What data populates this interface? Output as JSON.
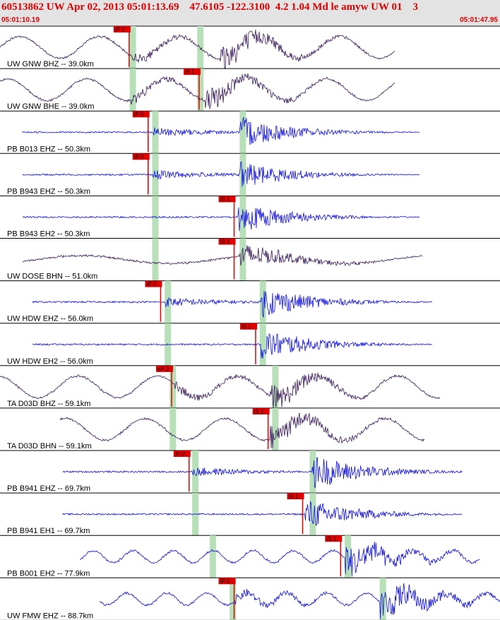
{
  "header": {
    "title": "60513862 UW Apr 02, 2013 05:01:13.69    47.6105 -122.3100  4.2 1.04 Md le amyw UW 01    3",
    "start_time": "05:01:10.19",
    "end_time": "05:01:47.95"
  },
  "colors": {
    "broadband": "#3a1a5a",
    "short_period": "#1010e0",
    "pick": "#e00000",
    "window": "#b8e0b8"
  },
  "chart_data": {
    "type": "line",
    "title": "60513862 UW Apr 02, 2013 05:01:13.69    47.6105 -122.3100  4.2 1.04 Md le amyw UW 01    3",
    "x_range": [
      "05:01:10.19",
      "05:01:47.95"
    ],
    "channels": [
      {
        "label": "UW GNW BHZ -- 39.0km",
        "kind": "broadband",
        "style": "long",
        "start": 0.0,
        "end": 0.79,
        "onset": 0.26,
        "onset2": 0.44,
        "amp": 0.85,
        "windows": [
          0.265,
          0.4
        ],
        "picks": [
          {
            "t": 0.23,
            "text": "iP 1",
            "color": "#e00000"
          }
        ]
      },
      {
        "label": "UW GNW BHE -- 39.0km",
        "kind": "broadband",
        "style": "long",
        "start": 0.0,
        "end": 0.79,
        "onset": 0.26,
        "onset2": 0.41,
        "amp": 0.7,
        "windows": [
          0.265,
          0.4
        ],
        "picks": [
          {
            "t": 0.37,
            "text": "iS 1",
            "color": "#e00000"
          }
        ]
      },
      {
        "label": "PB B013 EHZ -- 50.3km",
        "kind": "short",
        "style": "flat",
        "start": 0.045,
        "end": 0.84,
        "onset": 0.305,
        "onset2": 0.48,
        "amp": 0.85,
        "windows": [
          0.31,
          0.485
        ],
        "picks": [
          {
            "t": 0.268,
            "text": "iP 0",
            "color": "#e00000"
          }
        ]
      },
      {
        "label": "PB B943 EHZ -- 50.3km",
        "kind": "short",
        "style": "flat",
        "start": 0.045,
        "end": 0.84,
        "onset": 0.305,
        "onset2": 0.48,
        "amp": 0.7,
        "windows": [
          0.31,
          0.485
        ],
        "picks": [
          {
            "t": 0.268,
            "text": "iP 0",
            "color": "#e00000"
          }
        ]
      },
      {
        "label": "PB B943 EH2 -- 50.3km",
        "kind": "short",
        "style": "flat",
        "start": 0.045,
        "end": 0.84,
        "onset": 0.475,
        "onset2": 0.475,
        "amp": 0.85,
        "windows": [
          0.31,
          0.485
        ],
        "picks": [
          {
            "t": 0.44,
            "text": "iS 1",
            "color": "#e00000"
          }
        ]
      },
      {
        "label": "UW DOSE BHN -- 51.0km",
        "kind": "broadband",
        "style": "wavy",
        "start": 0.045,
        "end": 0.845,
        "onset": 0.48,
        "onset2": 0.48,
        "amp": 0.7,
        "windows": [
          0.31,
          0.485
        ],
        "picks": [
          {
            "t": 0.44,
            "text": "iS 1",
            "color": "#e00000"
          }
        ]
      },
      {
        "label": "UW HDW EHZ -- 56.0km",
        "kind": "short",
        "style": "flat",
        "start": 0.065,
        "end": 0.865,
        "onset": 0.33,
        "onset2": 0.52,
        "amp": 0.85,
        "windows": [
          0.335,
          0.525
        ],
        "picks": [
          {
            "t": 0.293,
            "text": "iP 0",
            "color": "#e00000"
          }
        ]
      },
      {
        "label": "UW HDW EH2 -- 56.0km",
        "kind": "short",
        "style": "flat",
        "start": 0.065,
        "end": 0.865,
        "onset": 0.52,
        "onset2": 0.52,
        "amp": 0.85,
        "windows": [
          0.335,
          0.525
        ],
        "picks": [
          {
            "t": 0.483,
            "text": "iS 1",
            "color": "#e00000"
          }
        ]
      },
      {
        "label": "TA D03D BHZ -- 59.1km",
        "kind": "broadband",
        "style": "long",
        "start": 0.0,
        "end": 0.88,
        "onset": 0.35,
        "onset2": 0.54,
        "amp": 0.7,
        "windows": [
          0.345,
          0.55
        ],
        "picks": [
          {
            "t": 0.315,
            "text": "eP 2",
            "color": "#e00000"
          }
        ]
      },
      {
        "label": "TA D03D BHN -- 59.1km",
        "kind": "broadband",
        "style": "long",
        "start": 0.12,
        "end": 0.85,
        "onset": 0.54,
        "onset2": 0.54,
        "amp": 0.7,
        "windows": [
          0.345,
          0.55
        ],
        "picks": [
          {
            "t": 0.508,
            "text": "iS 1",
            "color": "#e00000"
          }
        ]
      },
      {
        "label": "PB B941 EHZ -- 69.7km",
        "kind": "short",
        "style": "flat",
        "start": 0.125,
        "end": 0.925,
        "onset": 0.385,
        "onset2": 0.625,
        "amp": 0.9,
        "windows": [
          0.39,
          0.625
        ],
        "picks": [
          {
            "t": 0.35,
            "text": "iP 0",
            "color": "#e00000"
          }
        ]
      },
      {
        "label": "PB B941 EH1 -- 69.7km",
        "kind": "short",
        "style": "flat",
        "start": 0.125,
        "end": 0.925,
        "onset": 0.61,
        "onset2": 0.61,
        "amp": 0.8,
        "windows": [
          0.39,
          0.625
        ],
        "picks": [
          {
            "t": 0.577,
            "text": "iS 1",
            "color": "#e00000"
          }
        ]
      },
      {
        "label": "PB B001 EH2 -- 77.9km",
        "kind": "short",
        "style": "noisy",
        "start": 0.16,
        "end": 0.96,
        "onset": 0.69,
        "onset2": 0.69,
        "amp": 0.9,
        "windows": [
          0.425,
          0.695
        ],
        "picks": [
          {
            "t": 0.653,
            "text": "iS 1",
            "color": "#e00000"
          }
        ]
      },
      {
        "label": "UW FMW EHZ -- 88.7km",
        "kind": "short",
        "style": "noisy",
        "start": 0.2,
        "end": 1.0,
        "onset": 0.47,
        "onset2": 0.76,
        "amp": 0.9,
        "windows": [
          0.465,
          0.765
        ],
        "picks": [
          {
            "t": 0.44,
            "text": "iP 0",
            "color": "#e00000"
          }
        ]
      }
    ]
  }
}
